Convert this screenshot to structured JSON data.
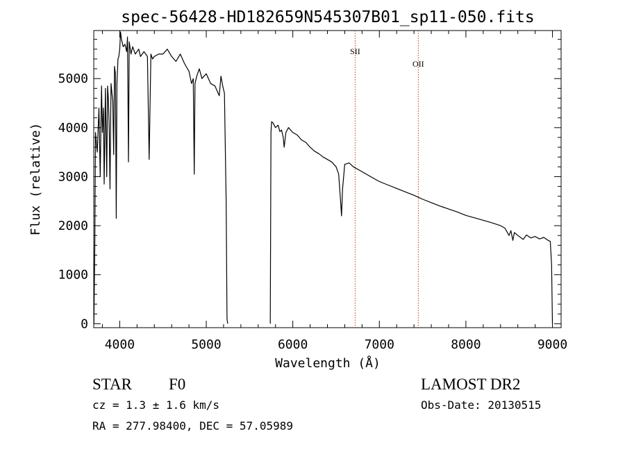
{
  "chart_data": {
    "type": "line",
    "title": "spec-56428-HD182659N545307B01_sp11-050.fits",
    "xlabel": "Wavelength (Å)",
    "ylabel": "Flux (relative)",
    "xlim": [
      3700,
      9100
    ],
    "ylim": [
      -80,
      5980
    ],
    "x_ticks": [
      4000,
      5000,
      6000,
      7000,
      8000,
      9000
    ],
    "y_ticks": [
      0,
      1000,
      2000,
      3000,
      4000,
      5000
    ],
    "grid": false,
    "line_color": "#000000",
    "marker_color": "#c0392b",
    "lines": [
      {
        "label": "SII",
        "x": 6720
      },
      {
        "label": "OII",
        "x": 7450
      }
    ],
    "series": [
      {
        "segments": [
          {
            "x": [
              3702,
              3712,
              3720,
              3740,
              3760,
              3775,
              3790,
              3800,
              3812,
              3820,
              3835,
              3850,
              3860,
              3870,
              3880,
              3888,
              3900,
              3910,
              3920,
              3930,
              3940,
              3950,
              3960,
              3968,
              3980,
              3990,
              4000,
              4010,
              4020,
              4040,
              4060,
              4080,
              4090,
              4101,
              4110,
              4130,
              4150,
              4180,
              4200,
              4220,
              4240,
              4260,
              4280,
              4300,
              4320,
              4340,
              4360,
              4380,
              4400,
              4450,
              4500,
              4550,
              4600,
              4650,
              4700,
              4750,
              4800,
              4830,
              4850,
              4861,
              4870,
              4890,
              4920,
              4950,
              5000,
              5050,
              5100,
              5150,
              5170,
              5190,
              5210,
              5230,
              5240,
              5248
            ],
            "y": [
              0,
              1600,
              3900,
              3500,
              4400,
              3000,
              4850,
              3900,
              4400,
              2850,
              4800,
              3000,
              4850,
              4550,
              3900,
              2750,
              4900,
              4700,
              4550,
              3450,
              5250,
              5100,
              2150,
              4900,
              5400,
              5450,
              5600,
              5950,
              5800,
              5650,
              5700,
              5550,
              5850,
              3300,
              5750,
              5500,
              5650,
              5500,
              5550,
              5600,
              5450,
              5500,
              5550,
              5500,
              5450,
              3350,
              5500,
              5400,
              5450,
              5500,
              5500,
              5600,
              5450,
              5350,
              5500,
              5300,
              5150,
              4900,
              5000,
              3050,
              4900,
              5050,
              5200,
              5000,
              5100,
              4900,
              4850,
              4650,
              5050,
              4850,
              4700,
              2450,
              100,
              0
            ]
          },
          {
            "x": [
              5740,
              5748,
              5755,
              5770,
              5800,
              5830,
              5850,
              5870,
              5890,
              5900,
              5920,
              5950,
              6000,
              6050,
              6100,
              6150,
              6200,
              6250,
              6300,
              6350,
              6400,
              6450,
              6500,
              6530,
              6550,
              6563,
              6575,
              6600,
              6650,
              6700,
              6800,
              6900,
              7000,
              7100,
              7200,
              7300,
              7400,
              7500,
              7600,
              7700,
              7800,
              7900,
              8000,
              8100,
              8200,
              8300,
              8400,
              8450,
              8498,
              8520,
              8542,
              8560,
              8600,
              8662,
              8700,
              8750,
              8800,
              8850,
              8900,
              8950,
              8975,
              8990,
              9000
            ],
            "y": [
              0,
              3900,
              4120,
              4100,
              4000,
              4050,
              3920,
              3950,
              3800,
              3600,
              3900,
              4000,
              3900,
              3850,
              3750,
              3700,
              3600,
              3520,
              3470,
              3400,
              3350,
              3300,
              3200,
              3050,
              2550,
              2200,
              2750,
              3250,
              3280,
              3200,
              3100,
              3000,
              2900,
              2830,
              2760,
              2690,
              2620,
              2540,
              2470,
              2400,
              2340,
              2280,
              2210,
              2160,
              2110,
              2060,
              2000,
              1950,
              1800,
              1900,
              1700,
              1860,
              1800,
              1720,
              1810,
              1750,
              1780,
              1730,
              1760,
              1700,
              1680,
              1200,
              0
            ]
          }
        ]
      }
    ]
  },
  "footer": {
    "object_class": "STAR",
    "subclass": "F0",
    "redshift": "cz =  1.3 ± 1.6 km/s",
    "coords": "RA = 277.98400, DEC =  57.05989",
    "survey": "LAMOST DR2",
    "obs_date": "Obs-Date: 20130515"
  }
}
